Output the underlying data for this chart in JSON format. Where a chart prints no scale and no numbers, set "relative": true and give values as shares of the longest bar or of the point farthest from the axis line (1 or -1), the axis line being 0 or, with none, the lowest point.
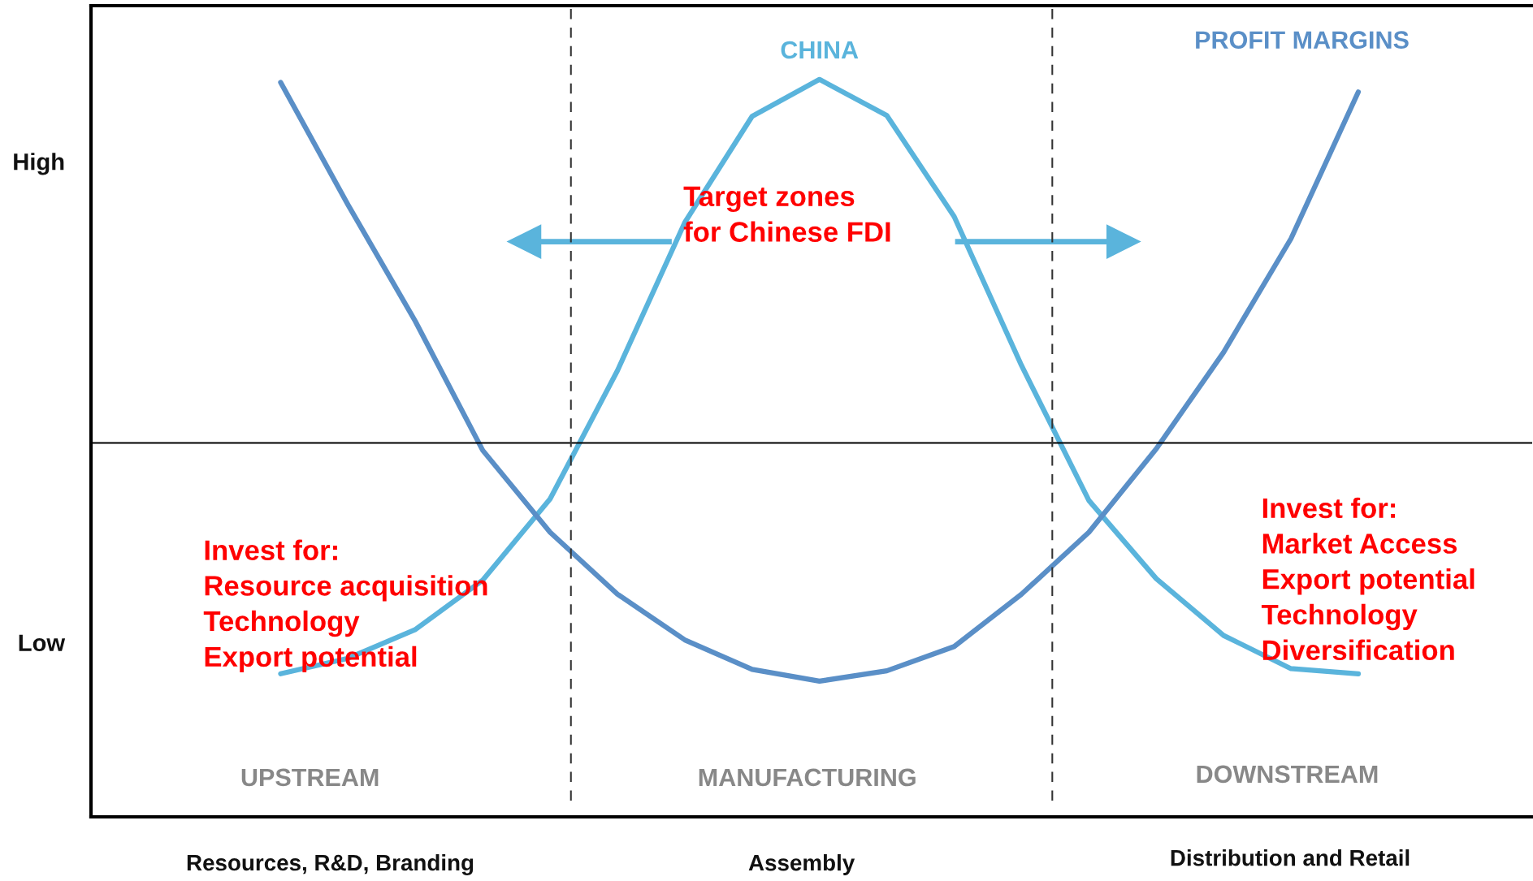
{
  "chart_data": {
    "type": "line",
    "relative": true,
    "categories": [
      null,
      null,
      null,
      null,
      null,
      null,
      null,
      null,
      null,
      null,
      null,
      null,
      null,
      null,
      null,
      null,
      null
    ],
    "grid": false,
    "marker": "none",
    "line_style": "solid",
    "series": [
      {
        "name": "CHINA",
        "color": "#5ab4dc",
        "values": [
          0.194,
          0.215,
          0.254,
          0.321,
          0.431,
          0.605,
          0.806,
          0.95,
          1,
          0.951,
          0.814,
          0.612,
          0.429,
          0.323,
          0.246,
          0.201,
          0.194
        ]
      },
      {
        "name": "PROFIT MARGINS",
        "color": "#5a8fc7",
        "values": [
          0.996,
          0.83,
          0.672,
          0.497,
          0.386,
          0.302,
          0.24,
          0.2,
          0.184,
          0.198,
          0.231,
          0.302,
          0.386,
          0.499,
          0.63,
          0.784,
          0.983
        ]
      }
    ],
    "ref_lines": [
      {
        "axis": "y",
        "value": 0.507,
        "line_style": "solid",
        "color": "#000000"
      }
    ],
    "annotations": [
      "Target zones\nfor Chinese FDI",
      "Invest for:\nResource acquisition\nTechnology\nExport potential",
      "Invest for:\nMarket Access\nExport potential\nTechnology\nDiversification",
      "UPSTREAM",
      "MANUFACTURING",
      "DOWNSTREAM",
      "High",
      "Low",
      "Resources, R&D, Branding",
      "Assembly",
      "Distribution and Retail"
    ]
  }
}
